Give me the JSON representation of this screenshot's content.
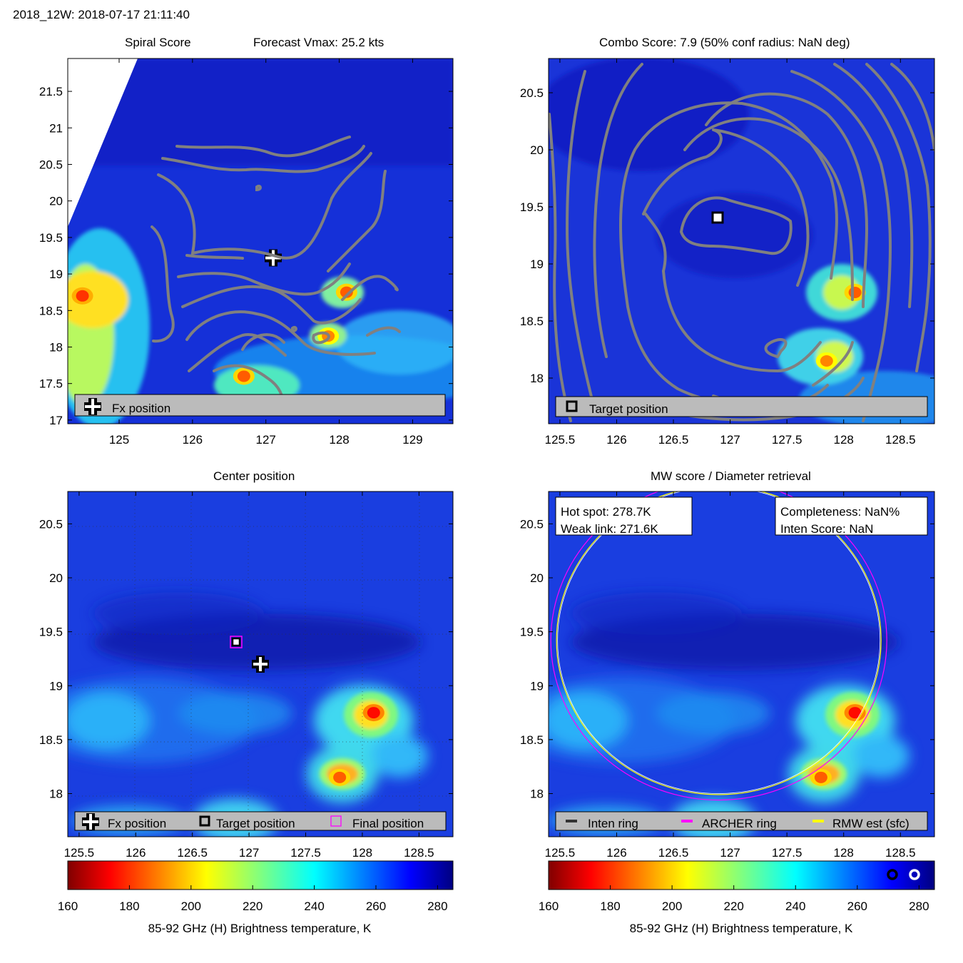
{
  "header": {
    "label": "2018_12W: 2018-07-17 21:11:40"
  },
  "panels": {
    "tl": {
      "title_left": "Spiral Score",
      "title_right": "Forecast Vmax: 25.2 kts",
      "legend": {
        "fx": "Fx position"
      }
    },
    "tr": {
      "title": "Combo Score: 7.9  (50% conf radius: NaN deg)",
      "legend": {
        "target": "Target position"
      }
    },
    "bl": {
      "title": "Center position",
      "legend": {
        "fx": "Fx position",
        "target": "Target position",
        "final": "Final position"
      }
    },
    "br": {
      "title": "MW score / Diameter retrieval",
      "info_left": {
        "hot": "Hot spot: 278.7K",
        "weak": "Weak link: 271.6K"
      },
      "info_right": {
        "comp": "Completeness: NaN%",
        "inten": "Inten Score: NaN"
      },
      "legend": {
        "inten": "Inten ring",
        "archer": "ARCHER ring",
        "rmw": "RMW est (sfc)"
      }
    }
  },
  "colorbar": {
    "label": "85-92 GHz (H) Brightness temperature, K",
    "ticks": [
      "160",
      "180",
      "200",
      "220",
      "240",
      "260",
      "280"
    ],
    "range": [
      160,
      285
    ]
  },
  "colors": {
    "contour": "#808080",
    "archer": "#ff00ff",
    "rmw": "#ffff00",
    "background": "#1a3ee0"
  },
  "chart_data": [
    {
      "type": "heatmap",
      "x_ticks": [
        "125",
        "126",
        "127",
        "128",
        "129"
      ],
      "y_ticks": [
        "21.5",
        "21",
        "20.5",
        "20",
        "19.5",
        "19",
        "18.5",
        "18",
        "17.5",
        "17"
      ],
      "xlim": [
        124.3,
        129.55
      ],
      "ylim": [
        16.95,
        21.95
      ],
      "markers": {
        "fx": [
          127.1,
          19.22
        ]
      },
      "hot_spots": [
        [
          124.5,
          18.7,
          180
        ],
        [
          128.1,
          18.75,
          185
        ],
        [
          127.85,
          18.15,
          190
        ],
        [
          126.7,
          17.6,
          185
        ]
      ]
    },
    {
      "type": "heatmap",
      "x_ticks": [
        "125.5",
        "126",
        "126.5",
        "127",
        "127.5",
        "128",
        "128.5"
      ],
      "y_ticks": [
        "20.5",
        "20",
        "19.5",
        "19",
        "18.5",
        "18"
      ],
      "xlim": [
        125.4,
        128.8
      ],
      "ylim": [
        17.6,
        20.8
      ],
      "markers": {
        "target": [
          126.9,
          19.42
        ]
      },
      "hot_spots": [
        [
          128.1,
          18.75,
          185
        ],
        [
          127.85,
          18.15,
          190
        ]
      ]
    },
    {
      "type": "heatmap",
      "x_ticks": [
        "125.5",
        "126",
        "126.5",
        "127",
        "127.5",
        "128",
        "128.5"
      ],
      "y_ticks": [
        "20.5",
        "20",
        "19.5",
        "19",
        "18.5",
        "18"
      ],
      "xlim": [
        125.4,
        128.8
      ],
      "ylim": [
        17.6,
        20.8
      ],
      "markers": {
        "fx": [
          127.1,
          19.22
        ],
        "target": [
          126.9,
          19.42
        ],
        "final": [
          126.9,
          19.42
        ]
      },
      "hot_spots": [
        [
          128.1,
          18.75,
          175
        ],
        [
          127.8,
          18.15,
          185
        ]
      ]
    },
    {
      "type": "heatmap",
      "x_ticks": [
        "125.5",
        "126",
        "126.5",
        "127",
        "127.5",
        "128",
        "128.5"
      ],
      "y_ticks": [
        "20.5",
        "20",
        "19.5",
        "19",
        "18.5",
        "18"
      ],
      "xlim": [
        125.4,
        128.8
      ],
      "ylim": [
        17.6,
        20.8
      ],
      "rings": {
        "archer_center": [
          126.9,
          19.42
        ],
        "archer_radius_deg": 1.48,
        "rmw_radius_deg": 1.43
      },
      "hot_spots": [
        [
          128.1,
          18.75,
          175
        ],
        [
          127.8,
          18.15,
          185
        ]
      ]
    }
  ]
}
